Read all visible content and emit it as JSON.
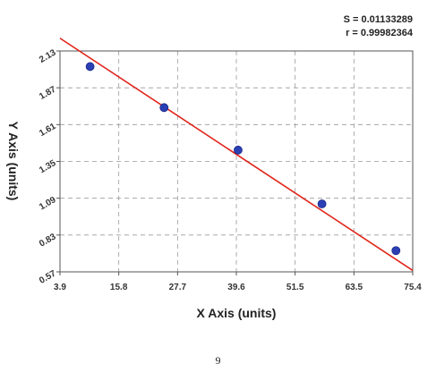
{
  "chart_data": {
    "type": "scatter",
    "stats": {
      "s": "S = 0.01133289",
      "r": "r = 0.99982364"
    },
    "xlabel": "X Axis (units)",
    "ylabel": "Y Axis (units)",
    "xlim": [
      3.9,
      75.4
    ],
    "ylim": [
      0.57,
      2.13
    ],
    "x_ticks": [
      "3.9",
      "15.8",
      "27.7",
      "39.6",
      "51.5",
      "63.5",
      "75.4"
    ],
    "y_ticks": [
      "0.57",
      "0.83",
      "1.09",
      "1.35",
      "1.61",
      "1.87",
      "2.13"
    ],
    "grid": true,
    "series": [
      {
        "points": [
          {
            "x": 10.0,
            "y": 2.02
          },
          {
            "x": 25.0,
            "y": 1.73
          },
          {
            "x": 40.0,
            "y": 1.43
          },
          {
            "x": 57.0,
            "y": 1.05
          },
          {
            "x": 72.0,
            "y": 0.72
          }
        ]
      }
    ],
    "fit_line": {
      "x": [
        3.9,
        75.4
      ],
      "y": [
        2.22,
        0.58
      ]
    },
    "colors": {
      "line": "#e0251b",
      "marker": "#2b3fb5",
      "grid": "#999999",
      "axis": "#555555"
    }
  },
  "page": {
    "number": "9"
  }
}
